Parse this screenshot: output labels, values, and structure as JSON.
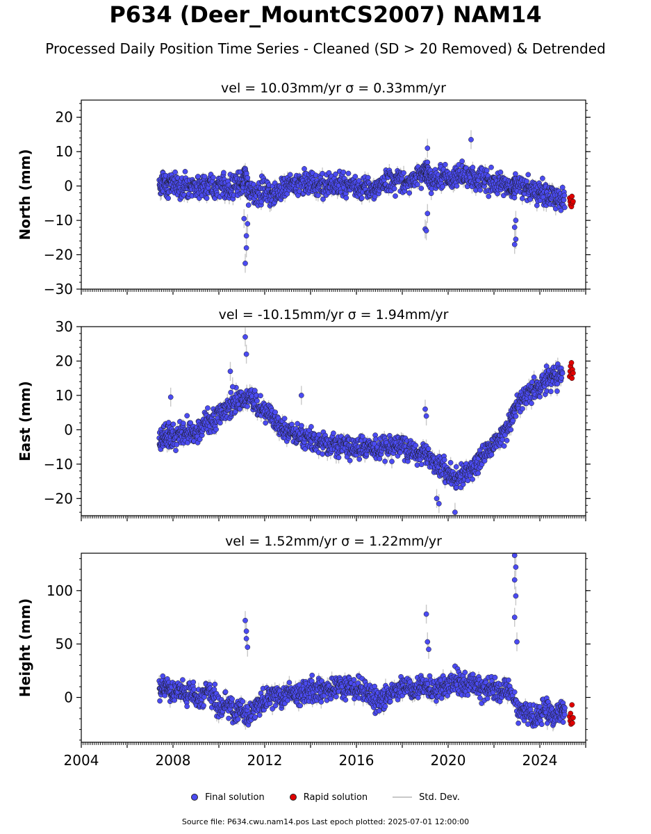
{
  "header": {
    "title": "P634 (Deer_MountCS2007) NAM14",
    "subtitle": "Processed Daily Position Time Series - Cleaned (SD > 20 Removed) & Detrended"
  },
  "legend": {
    "final_label": "Final solution",
    "rapid_label": "Rapid solution",
    "std_label": "Std. Dev."
  },
  "footer": {
    "source": "Source file: P634.cwu.nam14.pos  Last epoch plotted: 2025-07-01 12:00:00"
  },
  "colors": {
    "final": "#4b4bf2",
    "rapid": "#e00000",
    "std_dev": "#c8c8c8",
    "marker_edge": "#1a1a1a"
  },
  "chart_data": [
    {
      "type": "scatter",
      "title": "vel = 10.03mm/yr   σ = 0.33mm/yr",
      "ylabel": "North (mm)",
      "xlim": [
        2004,
        2026
      ],
      "ylim": [
        -30,
        25
      ],
      "yticks": [
        -30,
        -20,
        -10,
        0,
        10,
        20
      ],
      "yticklabels": [
        "−30",
        "−20",
        "−10",
        "0",
        "10",
        "20"
      ],
      "xticks": [
        2004,
        2008,
        2012,
        2016,
        2020,
        2024
      ],
      "show_xticklabels": false,
      "grid": false,
      "series": [
        {
          "name": "Final solution",
          "x": [
            2007.4,
            2007.6,
            2007.8,
            2008.0,
            2008.3,
            2008.6,
            2008.9,
            2009.2,
            2009.5,
            2009.8,
            2010.1,
            2010.4,
            2010.7,
            2011.0,
            2011.15,
            2011.3,
            2011.6,
            2011.9,
            2012.2,
            2012.5,
            2012.8,
            2013.1,
            2013.4,
            2013.7,
            2014.0,
            2014.3,
            2014.6,
            2014.9,
            2015.2,
            2015.5,
            2015.8,
            2016.1,
            2016.4,
            2016.7,
            2017.0,
            2017.3,
            2017.6,
            2017.9,
            2018.2,
            2018.5,
            2018.8,
            2019.0,
            2019.1,
            2019.3,
            2019.6,
            2019.9,
            2020.2,
            2020.5,
            2020.8,
            2021.1,
            2021.4,
            2021.7,
            2022.0,
            2022.3,
            2022.6,
            2022.85,
            2022.95,
            2023.3,
            2023.6,
            2023.9,
            2024.2,
            2024.5,
            2024.8,
            2025.1
          ],
          "y": [
            0.5,
            1.0,
            0.0,
            1.5,
            -0.5,
            0.5,
            0.0,
            -1.0,
            1.0,
            -0.5,
            0.5,
            -1.0,
            0.0,
            -0.5,
            4.0,
            -1.5,
            -3.0,
            -1.0,
            -2.0,
            -1.5,
            -0.5,
            0.5,
            0.0,
            1.0,
            1.0,
            0.5,
            0.0,
            0.5,
            0.0,
            -0.5,
            0.5,
            -1.0,
            0.0,
            -1.0,
            0.0,
            2.0,
            1.5,
            2.0,
            1.0,
            2.0,
            3.0,
            5.0,
            4.0,
            1.0,
            2.0,
            3.0,
            2.0,
            3.0,
            3.0,
            2.5,
            2.0,
            1.5,
            0.5,
            1.0,
            -0.5,
            0.0,
            0.5,
            -0.5,
            -1.0,
            -1.5,
            -2.0,
            -3.0,
            -3.5,
            -4.0
          ]
        },
        {
          "name": "Final solution outliers",
          "x": [
            2011.15,
            2011.2,
            2011.2,
            2011.25,
            2011.1,
            2019.0,
            2019.05,
            2019.1,
            2019.1,
            2022.9,
            2022.95,
            2022.9,
            2022.95,
            2021.0
          ],
          "y": [
            -22.5,
            -18.0,
            -14.5,
            -11.0,
            -9.5,
            -12.5,
            -13.0,
            -8.0,
            11.0,
            -17.0,
            -15.5,
            -12.0,
            -10.0,
            13.5
          ]
        },
        {
          "name": "Rapid solution",
          "x": [
            2025.3,
            2025.32,
            2025.34,
            2025.36,
            2025.38,
            2025.4,
            2025.42,
            2025.45
          ],
          "y": [
            -3.5,
            -4.5,
            -5.5,
            -4.0,
            -6.0,
            -3.0,
            -5.0,
            -4.5
          ]
        }
      ]
    },
    {
      "type": "scatter",
      "title": "vel = -10.15mm/yr   σ = 1.94mm/yr",
      "ylabel": "East (mm)",
      "xlim": [
        2004,
        2026
      ],
      "ylim": [
        -25,
        30
      ],
      "yticks": [
        -20,
        -10,
        0,
        10,
        20,
        30
      ],
      "yticklabels": [
        "−20",
        "−10",
        "0",
        "10",
        "20",
        "30"
      ],
      "xticks": [
        2004,
        2008,
        2012,
        2016,
        2020,
        2024
      ],
      "show_xticklabels": false,
      "grid": false,
      "series": [
        {
          "name": "Final solution",
          "x": [
            2007.4,
            2007.6,
            2007.8,
            2008.0,
            2008.3,
            2008.6,
            2008.9,
            2009.2,
            2009.5,
            2009.8,
            2010.1,
            2010.4,
            2010.7,
            2011.0,
            2011.3,
            2011.6,
            2011.9,
            2012.2,
            2012.5,
            2012.8,
            2013.1,
            2013.4,
            2013.7,
            2014.0,
            2014.3,
            2014.6,
            2014.9,
            2015.2,
            2015.5,
            2015.8,
            2016.1,
            2016.4,
            2016.7,
            2017.0,
            2017.3,
            2017.6,
            2017.9,
            2018.2,
            2018.5,
            2018.8,
            2019.1,
            2019.4,
            2019.7,
            2020.0,
            2020.3,
            2020.6,
            2020.9,
            2021.2,
            2021.5,
            2021.8,
            2022.1,
            2022.4,
            2022.7,
            2022.9,
            2023.2,
            2023.5,
            2023.8,
            2024.1,
            2024.4,
            2024.7,
            2025.0
          ],
          "y": [
            -3.0,
            -2.0,
            -1.0,
            -2.0,
            -1.0,
            0.0,
            -1.0,
            0.0,
            2.0,
            3.0,
            5.0,
            6.0,
            8.0,
            9.0,
            10.0,
            8.0,
            6.0,
            4.0,
            2.0,
            0.0,
            -1.0,
            -2.0,
            -2.5,
            -3.0,
            -3.5,
            -4.0,
            -4.0,
            -4.5,
            -4.5,
            -5.0,
            -5.0,
            -5.0,
            -5.5,
            -5.0,
            -4.5,
            -5.0,
            -5.5,
            -6.0,
            -6.5,
            -7.0,
            -7.0,
            -9.0,
            -11.0,
            -13.0,
            -14.0,
            -13.5,
            -12.0,
            -10.0,
            -8.0,
            -6.0,
            -4.0,
            -1.0,
            2.0,
            6.0,
            9.0,
            11.0,
            12.0,
            13.5,
            14.5,
            15.0,
            16.0
          ]
        },
        {
          "name": "Final solution outliers",
          "x": [
            2011.15,
            2011.2,
            2010.5,
            2010.6,
            2013.6,
            2007.9,
            2019.5,
            2019.6,
            2020.3,
            2019.0,
            2019.05
          ],
          "y": [
            27.0,
            22.0,
            17.0,
            12.5,
            10.0,
            9.5,
            -20.0,
            -21.5,
            -24.0,
            6.0,
            4.0
          ]
        },
        {
          "name": "Rapid solution",
          "x": [
            2025.3,
            2025.32,
            2025.34,
            2025.36,
            2025.38,
            2025.4,
            2025.42,
            2025.45
          ],
          "y": [
            15.5,
            17.0,
            18.5,
            16.0,
            19.5,
            15.0,
            17.5,
            16.5
          ]
        }
      ]
    },
    {
      "type": "scatter",
      "title": "vel = 1.52mm/yr   σ = 1.22mm/yr",
      "ylabel": "Height (mm)",
      "xlim": [
        2004,
        2026
      ],
      "ylim": [
        -42,
        135
      ],
      "yticks": [
        0,
        50,
        100
      ],
      "yticklabels": [
        "0",
        "50",
        "100"
      ],
      "xticks": [
        2004,
        2008,
        2012,
        2016,
        2020,
        2024
      ],
      "xticklabels": [
        "2004",
        "2008",
        "2012",
        "2016",
        "2020",
        "2024"
      ],
      "show_xticklabels": true,
      "grid": false,
      "series": [
        {
          "name": "Final solution",
          "x": [
            2007.4,
            2007.6,
            2007.8,
            2008.0,
            2008.3,
            2008.6,
            2008.9,
            2009.2,
            2009.5,
            2009.8,
            2010.1,
            2010.4,
            2010.7,
            2011.0,
            2011.3,
            2011.6,
            2011.9,
            2012.2,
            2012.5,
            2012.8,
            2013.1,
            2013.4,
            2013.7,
            2014.0,
            2014.3,
            2014.6,
            2014.9,
            2015.2,
            2015.5,
            2015.8,
            2016.1,
            2016.4,
            2016.7,
            2017.0,
            2017.3,
            2017.6,
            2017.9,
            2018.2,
            2018.5,
            2018.8,
            2019.1,
            2019.4,
            2019.7,
            2020.0,
            2020.3,
            2020.6,
            2020.9,
            2021.2,
            2021.5,
            2021.8,
            2022.1,
            2022.4,
            2022.7,
            2023.1,
            2023.4,
            2023.7,
            2024.0,
            2024.3,
            2024.6,
            2024.9,
            2025.1
          ],
          "y": [
            5.0,
            10.0,
            8.0,
            2.0,
            8.0,
            0.0,
            5.0,
            -5.0,
            5.0,
            0.0,
            -10.0,
            -5.0,
            -15.0,
            -10.0,
            -20.0,
            -10.0,
            -5.0,
            0.0,
            3.0,
            0.0,
            5.0,
            2.0,
            5.0,
            8.0,
            5.0,
            10.0,
            5.0,
            12.0,
            8.0,
            10.0,
            8.0,
            5.0,
            0.0,
            -5.0,
            0.0,
            5.0,
            8.0,
            10.0,
            5.0,
            12.0,
            10.0,
            5.0,
            8.0,
            12.0,
            15.0,
            12.0,
            10.0,
            12.0,
            8.0,
            10.0,
            8.0,
            5.0,
            8.0,
            -15.0,
            -10.0,
            -20.0,
            -15.0,
            -10.0,
            -20.0,
            -15.0,
            -12.0
          ]
        },
        {
          "name": "Final solution outliers",
          "x": [
            2011.15,
            2011.2,
            2011.2,
            2011.25,
            2019.05,
            2019.1,
            2019.15,
            2022.9,
            2022.95,
            2022.9,
            2022.95,
            2022.9,
            2023.0
          ],
          "y": [
            72.0,
            62.0,
            55.0,
            47.0,
            78.0,
            52.0,
            45.0,
            133.0,
            122.0,
            110.0,
            95.0,
            75.0,
            52.0
          ]
        },
        {
          "name": "Rapid solution",
          "x": [
            2025.3,
            2025.32,
            2025.34,
            2025.36,
            2025.38,
            2025.4,
            2025.42,
            2025.45
          ],
          "y": [
            -18.0,
            -22.0,
            -15.0,
            -25.0,
            -20.0,
            -7.0,
            -24.0,
            -19.0
          ]
        }
      ]
    }
  ]
}
